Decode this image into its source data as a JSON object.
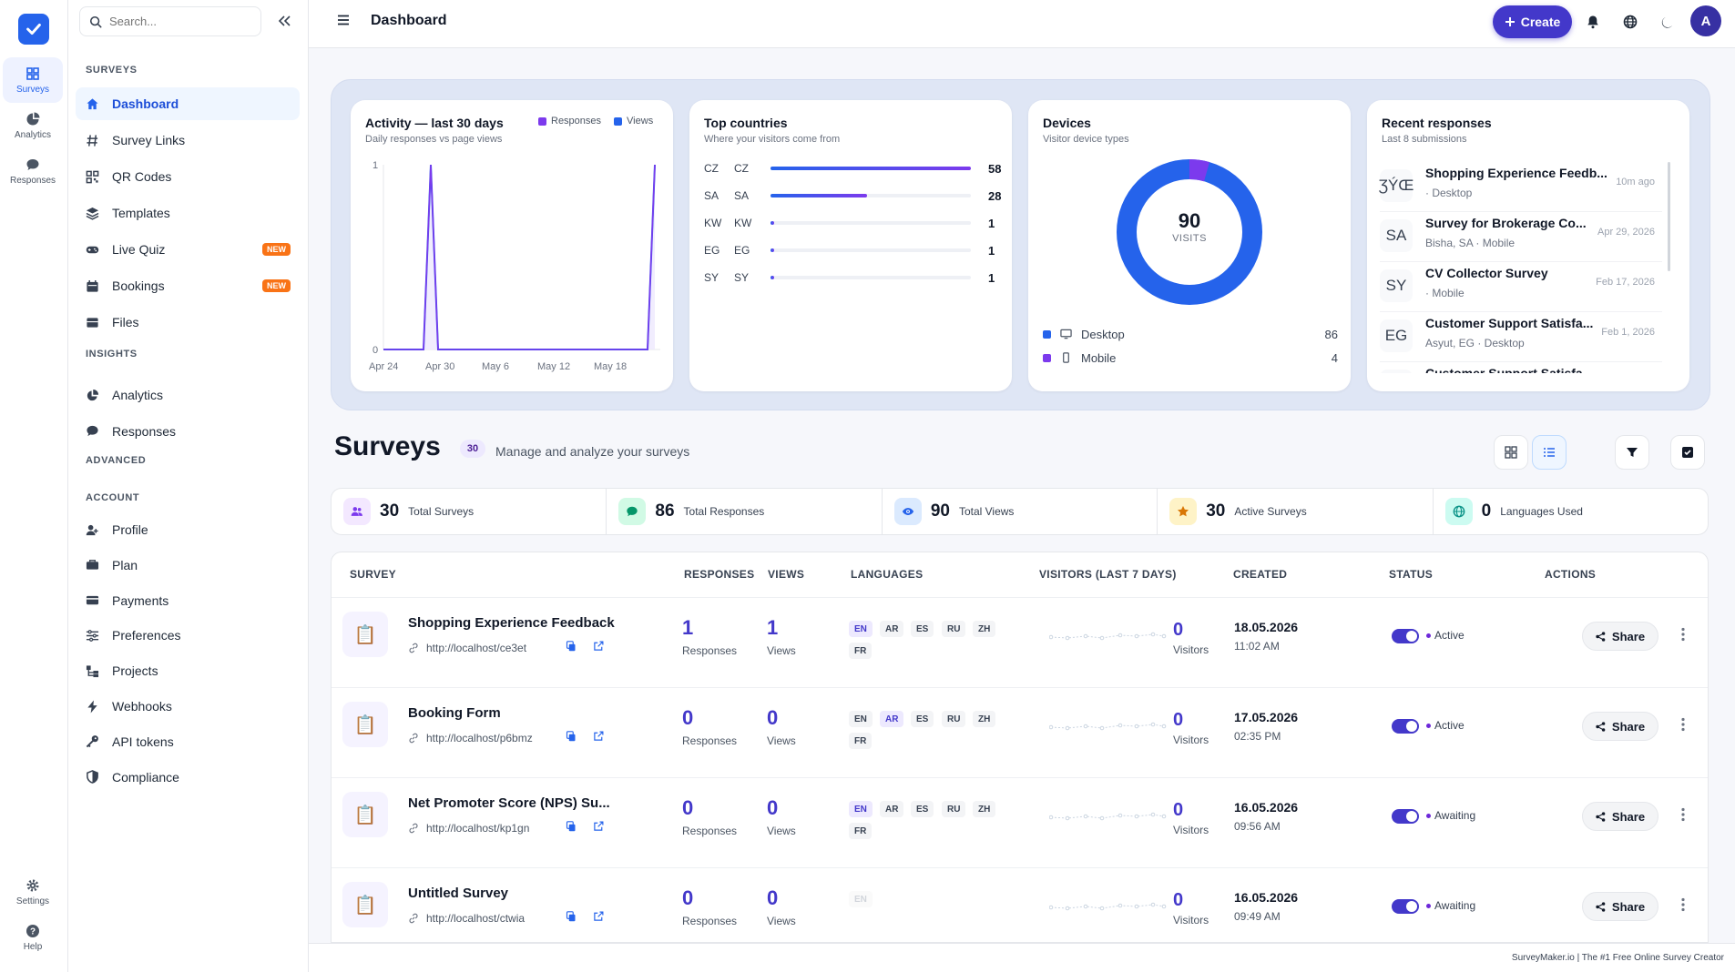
{
  "rail": {
    "items": [
      {
        "label": "Surveys",
        "icon": "grid-icon"
      },
      {
        "label": "Analytics",
        "icon": "pie-chart-icon"
      },
      {
        "label": "Responses",
        "icon": "chat-icon"
      }
    ],
    "bottom": [
      {
        "label": "Settings",
        "icon": "gear-icon"
      },
      {
        "label": "Help",
        "icon": "help-icon"
      }
    ]
  },
  "sidebar": {
    "search_placeholder": "Search...",
    "sections": {
      "surveys": "SURVEYS",
      "insights": "INSIGHTS",
      "advanced": "ADVANCED",
      "account": "ACCOUNT"
    },
    "surveys_items": [
      {
        "label": "Dashboard",
        "icon": "home-icon"
      },
      {
        "label": "Survey Links",
        "icon": "hash-icon"
      },
      {
        "label": "QR Codes",
        "icon": "qr-icon"
      },
      {
        "label": "Templates",
        "icon": "layers-icon"
      },
      {
        "label": "Live Quiz",
        "icon": "gamepad-icon",
        "badge": "NEW"
      },
      {
        "label": "Bookings",
        "icon": "calendar-icon",
        "badge": "NEW"
      },
      {
        "label": "Files",
        "icon": "file-icon"
      }
    ],
    "insights_items": [
      {
        "label": "Analytics",
        "icon": "pie-chart-icon"
      },
      {
        "label": "Responses",
        "icon": "chat-icon"
      }
    ],
    "account_items": [
      {
        "label": "Profile",
        "icon": "user-icon"
      },
      {
        "label": "Plan",
        "icon": "plan-icon"
      },
      {
        "label": "Payments",
        "icon": "card-icon"
      },
      {
        "label": "Preferences",
        "icon": "sliders-icon"
      },
      {
        "label": "Projects",
        "icon": "projects-icon"
      },
      {
        "label": "Webhooks",
        "icon": "bolt-icon"
      },
      {
        "label": "API tokens",
        "icon": "key-icon"
      },
      {
        "label": "Compliance",
        "icon": "shield-icon"
      }
    ]
  },
  "header": {
    "title": "Dashboard",
    "create_label": "Create",
    "avatar_initial": "A"
  },
  "activity": {
    "title": "Activity — last 30 days",
    "subtitle": "Daily responses vs page views",
    "legend": [
      "Responses",
      "Views"
    ],
    "y_ticks": [
      "1",
      "0"
    ],
    "x_ticks": [
      "Apr 24",
      "Apr 30",
      "May 6",
      "May 12",
      "May 18"
    ]
  },
  "countries": {
    "title": "Top countries",
    "subtitle": "Where your visitors come from",
    "rows": [
      {
        "flag": "CZ",
        "code": "CZ",
        "value": 58
      },
      {
        "flag": "SA",
        "code": "SA",
        "value": 28
      },
      {
        "flag": "KW",
        "code": "KW",
        "value": 1
      },
      {
        "flag": "EG",
        "code": "EG",
        "value": 1
      },
      {
        "flag": "SY",
        "code": "SY",
        "value": 1
      }
    ]
  },
  "devices": {
    "title": "Devices",
    "subtitle": "Visitor device types",
    "total": "90",
    "total_label": "VISITS",
    "rows": [
      {
        "label": "Desktop",
        "value": 86,
        "color": "#2563eb"
      },
      {
        "label": "Mobile",
        "value": 4,
        "color": "#7c3aed"
      }
    ]
  },
  "recent": {
    "title": "Recent responses",
    "subtitle": "Last 8 submissions",
    "rows": [
      {
        "flag": "ƷÝŒ",
        "title": "Shopping Experience Feedb...",
        "meta": "· Desktop",
        "date": "10m ago"
      },
      {
        "flag": "SA",
        "title": "Survey for Brokerage Co...",
        "meta": "Bisha, SA · Mobile",
        "date": "Apr 29, 2026"
      },
      {
        "flag": "SY",
        "title": "CV Collector Survey",
        "meta": "· Mobile",
        "date": "Feb 17, 2026"
      },
      {
        "flag": "EG",
        "title": "Customer Support Satisfa...",
        "meta": "Asyut, EG · Desktop",
        "date": "Feb 1, 2026"
      },
      {
        "flag": "",
        "title": "Customer Support Satisfa...",
        "meta": "",
        "date": ""
      }
    ]
  },
  "surveys": {
    "title": "Surveys",
    "count": "30",
    "subtitle": "Manage and analyze your surveys",
    "stats": [
      {
        "value": "30",
        "label": "Total Surveys",
        "color": "#7c3aed",
        "bg": "#f3e8ff",
        "icon": "users-icon"
      },
      {
        "value": "86",
        "label": "Total Responses",
        "color": "#059669",
        "bg": "#d1fae5",
        "icon": "chat-icon"
      },
      {
        "value": "90",
        "label": "Total Views",
        "color": "#2563eb",
        "bg": "#dbeafe",
        "icon": "eye-icon"
      },
      {
        "value": "30",
        "label": "Active Surveys",
        "color": "#d97706",
        "bg": "#fef3c7",
        "icon": "star-icon"
      },
      {
        "value": "0",
        "label": "Languages Used",
        "color": "#0d9488",
        "bg": "#ccfbf1",
        "icon": "globe-icon"
      }
    ],
    "columns": [
      "SURVEY",
      "RESPONSES",
      "VIEWS",
      "LANGUAGES",
      "VISITORS (LAST 7 DAYS)",
      "CREATED",
      "STATUS",
      "ACTIONS"
    ],
    "responses_label": "Responses",
    "views_label": "Views",
    "visitors_label": "Visitors",
    "share_label": "Share",
    "rows": [
      {
        "name": "Shopping Experience Feedback",
        "link": "http://localhost/ce3et",
        "responses": "1",
        "views": "1",
        "langs": [
          "EN",
          "AR",
          "ES",
          "RU",
          "ZH",
          "FR"
        ],
        "active_lang": "EN",
        "visitors": "0",
        "date": "18.05.2026",
        "time": "11:02 AM",
        "status": "Active"
      },
      {
        "name": "Booking Form",
        "link": "http://localhost/p6bmz",
        "responses": "0",
        "views": "0",
        "langs": [
          "EN",
          "AR",
          "ES",
          "RU",
          "ZH",
          "FR"
        ],
        "active_lang": "AR",
        "visitors": "0",
        "date": "17.05.2026",
        "time": "02:35 PM",
        "status": "Active"
      },
      {
        "name": "Net Promoter Score (NPS) Su...",
        "link": "http://localhost/kp1gn",
        "responses": "0",
        "views": "0",
        "langs": [
          "EN",
          "AR",
          "ES",
          "RU",
          "ZH",
          "FR"
        ],
        "active_lang": "EN",
        "visitors": "0",
        "date": "16.05.2026",
        "time": "09:56 AM",
        "status": "Awaiting"
      },
      {
        "name": "Untitled Survey",
        "link": "http://localhost/ctwia",
        "responses": "0",
        "views": "0",
        "langs": [
          "EN"
        ],
        "active_lang": "",
        "visitors": "0",
        "date": "16.05.2026",
        "time": "09:49 AM",
        "status": "Awaiting"
      }
    ]
  },
  "footer": {
    "text": "SurveyMaker.io | The #1 Free Online Survey Creator"
  }
}
